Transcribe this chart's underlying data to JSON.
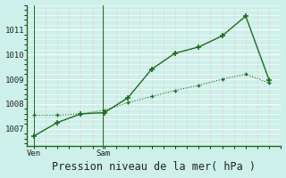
{
  "line1_x": [
    0,
    1,
    2,
    3,
    4,
    5,
    6,
    7,
    8,
    9,
    10
  ],
  "line1_y": [
    1006.7,
    1007.25,
    1007.6,
    1007.65,
    1008.25,
    1009.4,
    1010.05,
    1010.3,
    1010.75,
    1011.55,
    1008.95
  ],
  "line2_x": [
    0,
    1,
    2,
    3,
    4,
    5,
    6,
    7,
    8,
    9,
    10
  ],
  "line2_y": [
    1007.55,
    1007.55,
    1007.6,
    1007.75,
    1008.05,
    1008.3,
    1008.55,
    1008.75,
    1009.0,
    1009.2,
    1008.85
  ],
  "line_color": "#1a6e1a",
  "background_color": "#cef0ea",
  "grid_major_color": "#ffffff",
  "grid_minor_color": "#e8c8c8",
  "ylabel_ticks": [
    1007,
    1008,
    1009,
    1010,
    1011
  ],
  "ylim": [
    1006.3,
    1012.0
  ],
  "xlim": [
    -0.3,
    10.5
  ],
  "xlabel": "Pression niveau de la mer( hPa )",
  "ven_x": 0.0,
  "sam_x": 2.95,
  "ven_label": "Ven",
  "sam_label": "Sam",
  "tick_fontsize": 6.5,
  "label_fontsize": 8.5
}
